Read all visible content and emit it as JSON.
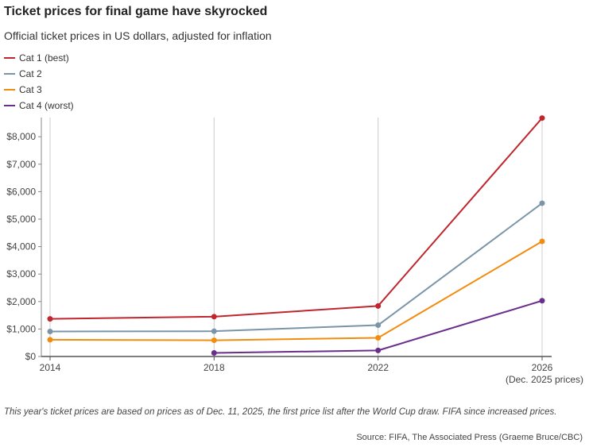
{
  "chart_data": {
    "type": "line",
    "title": "Ticket prices for final game have skyrocked",
    "subtitle": "Official ticket prices in US dollars, adjusted for inflation",
    "x": [
      "2014",
      "2018",
      "2022",
      "2026"
    ],
    "x_note": "(Dec. 2025 prices)",
    "ylim": [
      0,
      8700
    ],
    "yticks": [
      0,
      1000,
      2000,
      3000,
      4000,
      5000,
      6000,
      7000,
      8000
    ],
    "ytick_labels": [
      "$0",
      "$1,000",
      "$2,000",
      "$3,000",
      "$4,000",
      "$5,000",
      "$6,000",
      "$7,000",
      "$8,000"
    ],
    "grid": "vertical",
    "legend_position": "top-left",
    "series": [
      {
        "name": "Cat 1 (best)",
        "color": "#c0262d",
        "values": [
          1370,
          1450,
          1840,
          8680
        ]
      },
      {
        "name": "Cat 2",
        "color": "#7a95a8",
        "values": [
          910,
          920,
          1140,
          5580
        ]
      },
      {
        "name": "Cat 3",
        "color": "#f28c0f",
        "values": [
          610,
          590,
          680,
          4190
        ]
      },
      {
        "name": "Cat 4 (worst)",
        "color": "#6a2f8c",
        "values": [
          null,
          130,
          220,
          2030
        ]
      }
    ]
  },
  "note": "This year's ticket prices are based on prices as of Dec. 11, 2025, the first price list after the World Cup draw. FIFA since increased prices.",
  "source": "Source: FIFA, The Associated Press (Graeme Bruce/CBC)"
}
